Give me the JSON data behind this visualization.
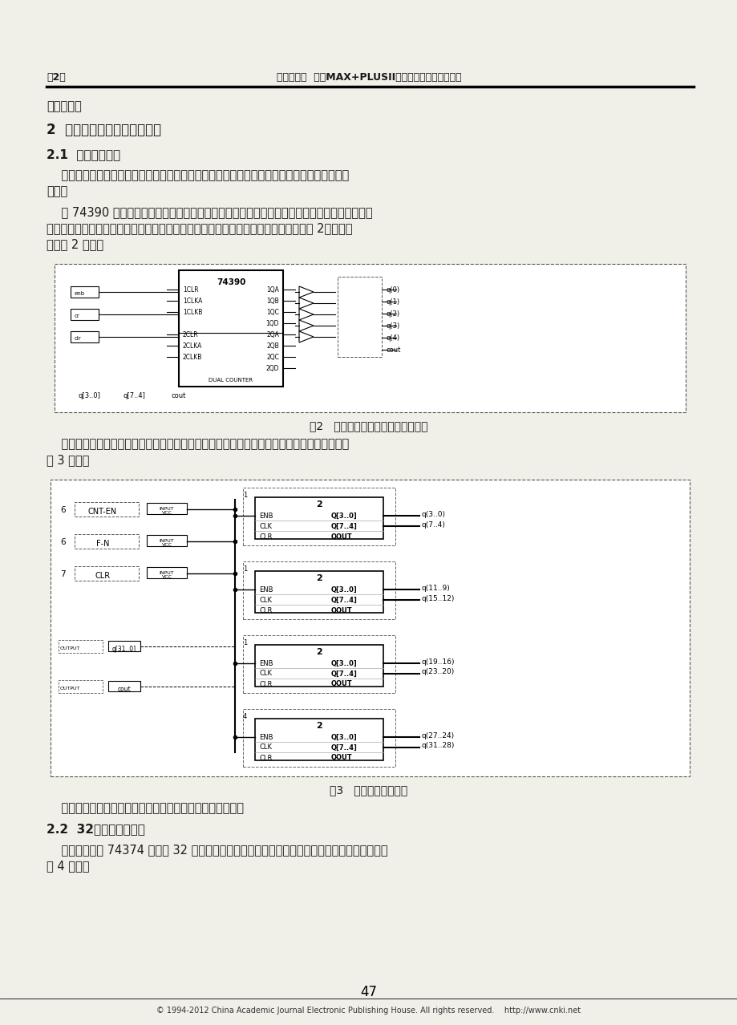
{
  "page_width": 9.2,
  "page_height": 12.78,
  "dpi": 100,
  "bg_color": "#f0efe8",
  "text_color": "#1a1a1a",
  "header_left": "第2期",
  "header_center": "车轩玉，等  基于MAX+PLUSII软件平台设计数字频率计",
  "para0": "的频率值。",
  "section2": "2  应用原理图输入法进行设计",
  "section21": "2.1  计数器的设计",
  "para1a": "    设计思路：先设计有时钟使能的两位十进制计数器，四个此类计数模块连接构成八位十进制计",
  "para1b": "数器。",
  "para2a": "    用 74390 设计有时钟使能的两位十进制计数器，应用软件中的宏功能元件库和基本逻辑元件库",
  "para2b": "将所需元件调入原理图编辑框，连接好后保存包装成一个元件存入库，本文将其命名为 2。具体电",
  "para2c": "路如图 2 所示。",
  "fig2_caption": "图2   有时钟使能的两位十进制计数器",
  "para3a": "    在原理图编辑框里调入设计好的两位十进制计数器，连接构成八位十进制计数器，具体电路如",
  "para3b": "图 3 所示。",
  "fig3_caption": "图3   八位十进制计数器",
  "para4a": "    设计好的八位十进制计数器保存包装成最终的计数器入库。",
  "section22": "2.2  32位锁存器的设计",
  "para5a": "    用八位锁存器 74374 连接成 32 位锁存器，保存包装成最终的锁存器入库，它的内部具体电路如",
  "para5b": "图 4 所示。",
  "footer": "47",
  "copyright": "© 1994-2012 China Academic Journal Electronic Publishing House. All rights reserved.    http://www.cnki.net"
}
